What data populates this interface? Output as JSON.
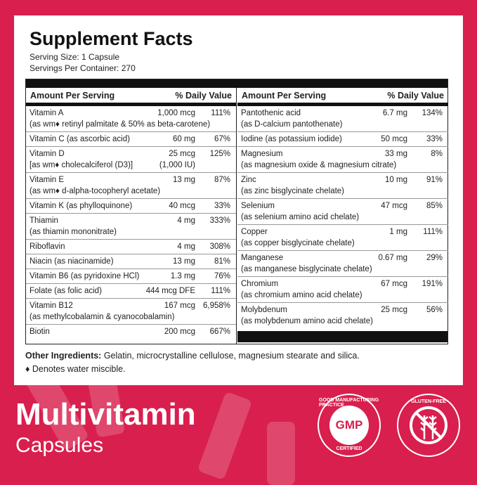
{
  "title": "Supplement Facts",
  "serving_size": "Serving Size: 1 Capsule",
  "servings_per_container": "Servings Per Container: 270",
  "header": {
    "amount": "Amount Per Serving",
    "dv": "% Daily Value"
  },
  "left_rows": [
    {
      "name": "Vitamin A",
      "sub": "(as wm♦ retinyl palmitate & 50% as beta-carotene)",
      "amount": "1,000 mcg",
      "dv": "111%"
    },
    {
      "name": "Vitamin C (as ascorbic acid)",
      "amount": "60 mg",
      "dv": "67%"
    },
    {
      "name": "Vitamin D",
      "sub": "[as wm♦ cholecalciferol (D3)]",
      "amount": "25 mcg",
      "amount2": "(1,000 IU)",
      "dv": "125%"
    },
    {
      "name": "Vitamin E",
      "sub": "(as wm♦ d-alpha-tocopheryl acetate)",
      "amount": "13 mg",
      "dv": "87%"
    },
    {
      "name": "Vitamin K (as phylloquinone)",
      "amount": "40 mcg",
      "dv": "33%"
    },
    {
      "name": "Thiamin",
      "sub": "(as thiamin mononitrate)",
      "amount": "4 mg",
      "dv": "333%"
    },
    {
      "name": "Riboflavin",
      "amount": "4 mg",
      "dv": "308%"
    },
    {
      "name": "Niacin (as niacinamide)",
      "amount": "13 mg",
      "dv": "81%"
    },
    {
      "name": "Vitamin B6 (as pyridoxine HCl)",
      "amount": "1.3 mg",
      "dv": "76%"
    },
    {
      "name": "Folate (as folic acid)",
      "amount": "444 mcg DFE",
      "dv": "111%"
    },
    {
      "name": "Vitamin B12",
      "sub": "(as methylcobalamin & cyanocobalamin)",
      "amount": "167 mcg",
      "dv": "6,958%"
    },
    {
      "name": "Biotin",
      "amount": "200 mcg",
      "dv": "667%"
    }
  ],
  "right_rows": [
    {
      "name": "Pantothenic acid",
      "sub": "(as D-calcium pantothenate)",
      "amount": "6.7 mg",
      "dv": "134%"
    },
    {
      "name": "Iodine (as potassium iodide)",
      "amount": "50 mcg",
      "dv": "33%"
    },
    {
      "name": "Magnesium",
      "sub": "(as magnesium oxide & magnesium citrate)",
      "amount": "33 mg",
      "dv": "8%"
    },
    {
      "name": "Zinc",
      "sub": "(as zinc bisglycinate chelate)",
      "amount": "10 mg",
      "dv": "91%"
    },
    {
      "name": "Selenium",
      "sub": "(as selenium amino acid chelate)",
      "amount": "47 mcg",
      "dv": "85%"
    },
    {
      "name": "Copper",
      "sub": "(as copper bisglycinate chelate)",
      "amount": "1 mg",
      "dv": "111%"
    },
    {
      "name": "Manganese",
      "sub": "(as manganese bisglycinate chelate)",
      "amount": "0.67 mg",
      "dv": "29%"
    },
    {
      "name": "Chromium",
      "sub": "(as chromium amino acid chelate)",
      "amount": "67 mcg",
      "dv": "191%"
    },
    {
      "name": "Molybdenum",
      "sub": "(as molybdenum amino acid chelate)",
      "amount": "25 mcg",
      "dv": "56%"
    }
  ],
  "other_label": "Other Ingredients:",
  "other_text": " Gelatin, microcrystalline cellulose, magnesium stearate and silica.",
  "note": "♦ Denotes water miscible.",
  "product_name": "Multivitamin",
  "product_form": "Capsules",
  "gmp_badge": {
    "center": "GMP",
    "top": "GOOD MANUFACTURING PRACTICE",
    "bottom": "CERTIFIED"
  },
  "gluten_badge": {
    "text": "GLUTEN-FREE",
    "icon": "crossed-wheat-icon"
  },
  "colors": {
    "background": "#d81f4e",
    "panel": "#ffffff"
  }
}
